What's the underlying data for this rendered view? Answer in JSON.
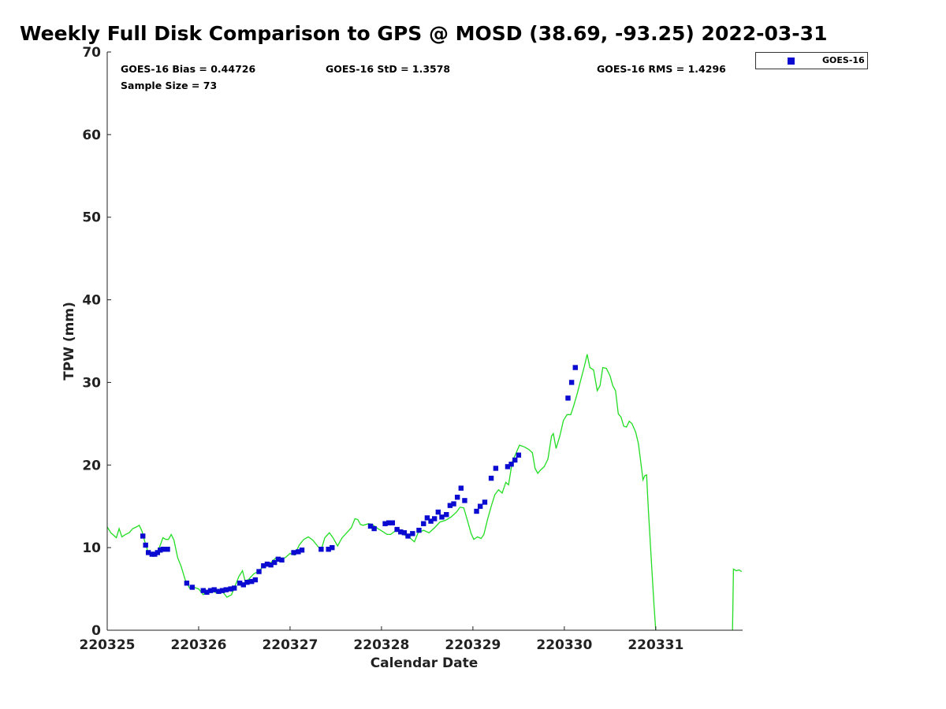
{
  "title": "Weekly Full Disk Comparison to GPS @ MOSD (38.69, -93.25) 2022-03-31",
  "stats": {
    "bias": "GOES-16 Bias = 0.44726",
    "std": "GOES-16 StD = 1.3578",
    "rms": "GOES-16 RMS = 1.4296",
    "sample": "Sample Size = 73"
  },
  "legend": {
    "label": "GOES-16"
  },
  "colors": {
    "goes": "#0a0ad0",
    "gps": "#22dd22"
  },
  "chart_data": {
    "type": "scatter",
    "xlabel": "Calendar Date",
    "ylabel": "TPW (mm)",
    "xlim": [
      0,
      6.95
    ],
    "ylim": [
      0,
      70
    ],
    "xticks": [
      0,
      1,
      2,
      3,
      4,
      5,
      6
    ],
    "xtick_labels": [
      "220325",
      "220326",
      "220327",
      "220328",
      "220329",
      "220330",
      "220331"
    ],
    "yticks": [
      0,
      10,
      20,
      30,
      40,
      50,
      60,
      70
    ],
    "ytick_labels": [
      "0",
      "10",
      "20",
      "30",
      "40",
      "50",
      "60",
      "70"
    ],
    "series": [
      {
        "name": "GOES-16",
        "style": "markers",
        "points": [
          [
            0.39,
            11.4
          ],
          [
            0.42,
            10.3
          ],
          [
            0.45,
            9.4
          ],
          [
            0.49,
            9.2
          ],
          [
            0.52,
            9.2
          ],
          [
            0.55,
            9.4
          ],
          [
            0.58,
            9.7
          ],
          [
            0.61,
            9.8
          ],
          [
            0.66,
            9.8
          ],
          [
            0.87,
            5.7
          ],
          [
            0.93,
            5.2
          ],
          [
            1.05,
            4.8
          ],
          [
            1.09,
            4.6
          ],
          [
            1.13,
            4.8
          ],
          [
            1.17,
            4.9
          ],
          [
            1.22,
            4.7
          ],
          [
            1.26,
            4.8
          ],
          [
            1.3,
            4.9
          ],
          [
            1.35,
            5.0
          ],
          [
            1.39,
            5.1
          ],
          [
            1.45,
            5.7
          ],
          [
            1.49,
            5.5
          ],
          [
            1.53,
            5.8
          ],
          [
            1.58,
            5.9
          ],
          [
            1.62,
            6.1
          ],
          [
            1.66,
            7.1
          ],
          [
            1.71,
            7.8
          ],
          [
            1.75,
            8.0
          ],
          [
            1.79,
            7.9
          ],
          [
            1.83,
            8.2
          ],
          [
            1.87,
            8.6
          ],
          [
            1.91,
            8.5
          ],
          [
            2.04,
            9.4
          ],
          [
            2.09,
            9.5
          ],
          [
            2.13,
            9.7
          ],
          [
            2.34,
            9.8
          ],
          [
            2.42,
            9.8
          ],
          [
            2.46,
            10.0
          ],
          [
            2.88,
            12.6
          ],
          [
            2.92,
            12.3
          ],
          [
            3.04,
            12.9
          ],
          [
            3.08,
            13.0
          ],
          [
            3.12,
            13.0
          ],
          [
            3.17,
            12.2
          ],
          [
            3.21,
            11.9
          ],
          [
            3.25,
            11.8
          ],
          [
            3.29,
            11.4
          ],
          [
            3.34,
            11.7
          ],
          [
            3.41,
            12.1
          ],
          [
            3.46,
            12.9
          ],
          [
            3.5,
            13.6
          ],
          [
            3.54,
            13.2
          ],
          [
            3.58,
            13.5
          ],
          [
            3.62,
            14.3
          ],
          [
            3.66,
            13.7
          ],
          [
            3.71,
            14.0
          ],
          [
            3.75,
            15.1
          ],
          [
            3.79,
            15.3
          ],
          [
            3.83,
            16.1
          ],
          [
            3.87,
            17.2
          ],
          [
            3.91,
            15.7
          ],
          [
            4.04,
            14.4
          ],
          [
            4.08,
            15.0
          ],
          [
            4.13,
            15.5
          ],
          [
            4.2,
            18.4
          ],
          [
            4.25,
            19.6
          ],
          [
            4.38,
            19.8
          ],
          [
            4.42,
            20.1
          ],
          [
            4.46,
            20.6
          ],
          [
            4.5,
            21.2
          ],
          [
            5.04,
            28.1
          ],
          [
            5.08,
            30.0
          ],
          [
            5.12,
            31.8
          ]
        ]
      },
      {
        "name": "GPS",
        "style": "line",
        "points": [
          [
            0.0,
            12.5
          ],
          [
            0.04,
            11.8
          ],
          [
            0.08,
            11.4
          ],
          [
            0.1,
            11.2
          ],
          [
            0.13,
            12.3
          ],
          [
            0.16,
            11.3
          ],
          [
            0.2,
            11.6
          ],
          [
            0.24,
            11.8
          ],
          [
            0.28,
            12.3
          ],
          [
            0.32,
            12.5
          ],
          [
            0.35,
            12.7
          ],
          [
            0.38,
            12.0
          ],
          [
            0.41,
            10.8
          ],
          [
            0.44,
            9.7
          ],
          [
            0.47,
            9.2
          ],
          [
            0.51,
            9.3
          ],
          [
            0.55,
            9.5
          ],
          [
            0.58,
            10.3
          ],
          [
            0.61,
            11.2
          ],
          [
            0.64,
            11.0
          ],
          [
            0.67,
            11.0
          ],
          [
            0.7,
            11.6
          ],
          [
            0.73,
            10.9
          ],
          [
            0.77,
            8.8
          ],
          [
            0.81,
            7.7
          ],
          [
            0.85,
            6.2
          ],
          [
            0.9,
            5.1
          ],
          [
            0.95,
            5.2
          ],
          [
            1.0,
            5.0
          ],
          [
            1.05,
            4.3
          ],
          [
            1.09,
            4.7
          ],
          [
            1.14,
            4.8
          ],
          [
            1.2,
            4.5
          ],
          [
            1.26,
            4.7
          ],
          [
            1.31,
            4.0
          ],
          [
            1.36,
            4.3
          ],
          [
            1.4,
            5.4
          ],
          [
            1.44,
            6.5
          ],
          [
            1.48,
            7.2
          ],
          [
            1.51,
            5.9
          ],
          [
            1.55,
            6.2
          ],
          [
            1.6,
            6.8
          ],
          [
            1.66,
            7.2
          ],
          [
            1.7,
            7.6
          ],
          [
            1.75,
            7.8
          ],
          [
            1.8,
            8.3
          ],
          [
            1.85,
            8.8
          ],
          [
            1.9,
            8.6
          ],
          [
            1.95,
            8.8
          ],
          [
            2.0,
            9.3
          ],
          [
            2.05,
            9.1
          ],
          [
            2.1,
            10.3
          ],
          [
            2.15,
            11.0
          ],
          [
            2.2,
            11.3
          ],
          [
            2.25,
            10.9
          ],
          [
            2.3,
            10.2
          ],
          [
            2.34,
            9.7
          ],
          [
            2.38,
            11.2
          ],
          [
            2.43,
            11.8
          ],
          [
            2.47,
            11.2
          ],
          [
            2.52,
            10.2
          ],
          [
            2.57,
            11.2
          ],
          [
            2.62,
            11.8
          ],
          [
            2.67,
            12.4
          ],
          [
            2.71,
            13.5
          ],
          [
            2.74,
            13.4
          ],
          [
            2.77,
            12.8
          ],
          [
            2.8,
            12.7
          ],
          [
            2.86,
            12.9
          ],
          [
            2.9,
            12.8
          ],
          [
            2.96,
            12.3
          ],
          [
            3.02,
            11.9
          ],
          [
            3.06,
            11.6
          ],
          [
            3.1,
            11.6
          ],
          [
            3.16,
            12.1
          ],
          [
            3.22,
            11.8
          ],
          [
            3.27,
            11.4
          ],
          [
            3.32,
            11.1
          ],
          [
            3.36,
            10.7
          ],
          [
            3.4,
            11.8
          ],
          [
            3.46,
            12.1
          ],
          [
            3.52,
            11.8
          ],
          [
            3.58,
            12.4
          ],
          [
            3.64,
            13.1
          ],
          [
            3.7,
            13.3
          ],
          [
            3.76,
            13.7
          ],
          [
            3.82,
            14.3
          ],
          [
            3.86,
            14.9
          ],
          [
            3.9,
            14.8
          ],
          [
            3.94,
            13.3
          ],
          [
            3.98,
            11.7
          ],
          [
            4.01,
            11.0
          ],
          [
            4.05,
            11.3
          ],
          [
            4.09,
            11.1
          ],
          [
            4.12,
            11.6
          ],
          [
            4.16,
            13.4
          ],
          [
            4.2,
            15.0
          ],
          [
            4.24,
            16.4
          ],
          [
            4.28,
            17.0
          ],
          [
            4.32,
            16.6
          ],
          [
            4.36,
            17.9
          ],
          [
            4.39,
            17.6
          ],
          [
            4.43,
            20.4
          ],
          [
            4.47,
            21.4
          ],
          [
            4.51,
            22.4
          ],
          [
            4.56,
            22.2
          ],
          [
            4.61,
            21.9
          ],
          [
            4.65,
            21.5
          ],
          [
            4.68,
            19.6
          ],
          [
            4.71,
            19.0
          ],
          [
            4.74,
            19.4
          ],
          [
            4.78,
            19.8
          ],
          [
            4.82,
            20.7
          ],
          [
            4.86,
            23.5
          ],
          [
            4.88,
            23.8
          ],
          [
            4.91,
            22.0
          ],
          [
            4.95,
            23.5
          ],
          [
            4.99,
            25.4
          ],
          [
            5.03,
            26.1
          ],
          [
            5.07,
            26.1
          ],
          [
            5.1,
            27.1
          ],
          [
            5.14,
            28.6
          ],
          [
            5.18,
            30.3
          ],
          [
            5.22,
            32.0
          ],
          [
            5.25,
            33.4
          ],
          [
            5.28,
            31.8
          ],
          [
            5.32,
            31.5
          ],
          [
            5.36,
            29.0
          ],
          [
            5.39,
            29.6
          ],
          [
            5.42,
            31.8
          ],
          [
            5.46,
            31.7
          ],
          [
            5.5,
            30.8
          ],
          [
            5.53,
            29.6
          ],
          [
            5.56,
            29.0
          ],
          [
            5.59,
            26.2
          ],
          [
            5.62,
            25.8
          ],
          [
            5.65,
            24.7
          ],
          [
            5.68,
            24.6
          ],
          [
            5.71,
            25.3
          ],
          [
            5.74,
            25.0
          ],
          [
            5.78,
            24.0
          ],
          [
            5.81,
            22.6
          ],
          [
            5.84,
            20.0
          ],
          [
            5.86,
            18.2
          ],
          [
            5.88,
            18.7
          ],
          [
            5.9,
            18.8
          ],
          [
            5.92,
            14.5
          ],
          [
            5.95,
            8.8
          ],
          [
            5.98,
            3.2
          ],
          [
            6.0,
            0.0
          ],
          null,
          [
            6.84,
            0.0
          ],
          [
            6.85,
            7.4
          ],
          [
            6.88,
            7.2
          ],
          [
            6.91,
            7.3
          ],
          [
            6.94,
            7.1
          ]
        ]
      }
    ],
    "legend_position": "top-right-outside",
    "grid": false
  }
}
